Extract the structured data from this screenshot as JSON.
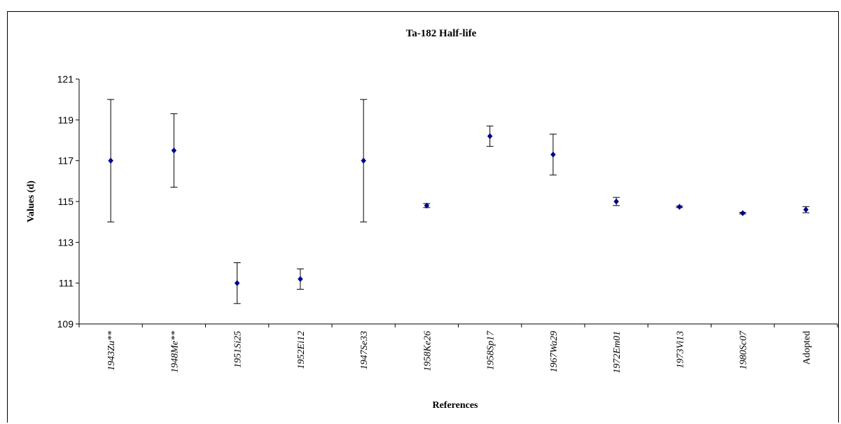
{
  "chart_data": {
    "type": "scatter",
    "title": "Ta-182 Half-life",
    "xlabel": "References",
    "ylabel": "Values (d)",
    "ylim": [
      109,
      121
    ],
    "yticks": [
      "109",
      "111",
      "113",
      "115",
      "117",
      "119",
      "121"
    ],
    "grid": false,
    "legend": "none",
    "marker_color": "#00008b",
    "categories": [
      "1943Zu**",
      "1948Me**",
      "1951Si25",
      "1952Ei12",
      "1947Se33",
      "1958Ke26",
      "1958Sp17",
      "1967Wa29",
      "1972Em01",
      "1973Vi13",
      "1980Sc07",
      "Adopted"
    ],
    "values": [
      117.0,
      117.5,
      111.0,
      111.2,
      117.0,
      114.8,
      118.2,
      117.3,
      115.0,
      114.74,
      114.43,
      114.6
    ],
    "errors": [
      3.0,
      1.8,
      1.0,
      0.5,
      3.0,
      0.1,
      0.5,
      1.0,
      0.2,
      0.04,
      0.04,
      0.15
    ],
    "italic_labels": [
      true,
      true,
      true,
      true,
      true,
      true,
      true,
      true,
      true,
      true,
      true,
      false
    ]
  }
}
